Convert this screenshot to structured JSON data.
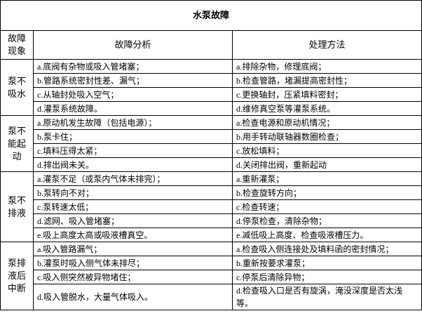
{
  "title": "水泵故障",
  "header": [
    "故障现象",
    "故障分析",
    "处理方法"
  ],
  "groups": [
    {
      "label": "泵不吸水",
      "rows": [
        [
          "a.底阀有杂物或吸入管堵塞；",
          "a.排除杂物，修理底阀；"
        ],
        [
          "b.管路系统密封性差、漏气；",
          "b.检查管路，堵漏提高密封性；"
        ],
        [
          "c.从轴封处吸入空气；",
          "c.更换轴封，压紧填料密封；"
        ],
        [
          "d.灌泵系统故障。",
          "d.维修真空泵等灌泵系统。"
        ]
      ]
    },
    {
      "label": "泵不能起动",
      "rows": [
        [
          "a.原动机发生故障（包括电源）；",
          "a.检查电源和原动机情况；"
        ],
        [
          "b.泵卡住；",
          "b.用手转动联轴器数圈检查；"
        ],
        [
          "c.填料压得太紧；",
          "c.放松填料；"
        ],
        [
          "d.排出阀未关。",
          "d.关闭排出阀，重新起动"
        ]
      ]
    },
    {
      "label": "泵不排液",
      "rows": [
        [
          "a.灌泵不足（或泵内气体未排完）；",
          "a.重新灌泵；"
        ],
        [
          "b.泵转向不对；",
          "b.检查旋转方向；"
        ],
        [
          "c.泵转速太低；",
          "c.检查转速；"
        ],
        [
          "d.滤网、吸入管堵塞；",
          "d.停泵检查，清除杂物；"
        ],
        [
          "e.吸上高度太高或吸液槽真空。",
          "e.减低吸上高度、检查吸液槽压力。"
        ]
      ]
    },
    {
      "label": "泵排液后中断",
      "rows": [
        [
          "a.吸入管路漏气；",
          "a.检查吸入侧连接处及填料函的密封情况；"
        ],
        [
          "b.灌泵时吸入侧气体未排尽；",
          "b.重新按要求灌泵；"
        ],
        [
          "c.吸入侧突然被异物堵住；",
          "c.停泵后清除异物；"
        ],
        [
          "d.吸入管脱水，大量气体吸入。",
          "d.检查吸入口是否有旋涡，淹没深度是否太浅等。"
        ]
      ]
    }
  ]
}
